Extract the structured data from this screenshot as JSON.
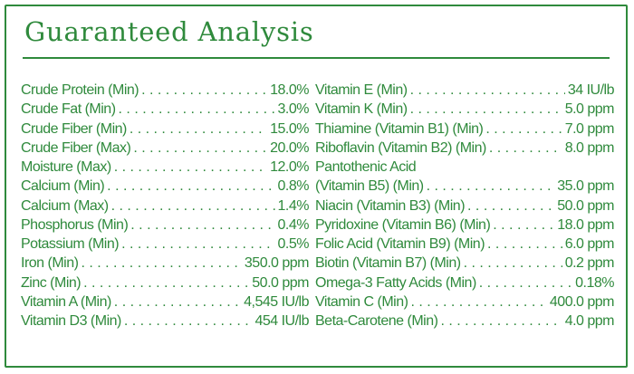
{
  "title": "Guaranteed Analysis",
  "left_column": [
    {
      "name": "Crude Protein (Min)",
      "value": "18.0%"
    },
    {
      "name": "Crude Fat (Min)",
      "value": "3.0%"
    },
    {
      "name": "Crude Fiber (Min)",
      "value": "15.0%"
    },
    {
      "name": "Crude Fiber (Max)",
      "value": "20.0%"
    },
    {
      "name": "Moisture (Max)",
      "value": "12.0%"
    },
    {
      "name": "Calcium (Min)",
      "value": "0.8%"
    },
    {
      "name": "Calcium (Max)",
      "value": "1.4%"
    },
    {
      "name": "Phosphorus (Min)",
      "value": "0.4%"
    },
    {
      "name": "Potassium (Min)",
      "value": "0.5%"
    },
    {
      "name": "Iron (Min)",
      "value": "350.0 ppm"
    },
    {
      "name": "Zinc (Min)",
      "value": "50.0 ppm"
    },
    {
      "name": "Vitamin A (Min)",
      "value": "4,545 IU/lb"
    },
    {
      "name": "Vitamin D3 (Min)",
      "value": "454 IU/lb"
    }
  ],
  "right_column": [
    {
      "name": "Vitamin E (Min)",
      "value": "34 IU/lb"
    },
    {
      "name": "Vitamin K (Min)",
      "value": "5.0 ppm"
    },
    {
      "name": "Thiamine (Vitamin B1) (Min)",
      "value": "7.0 ppm"
    },
    {
      "name": "Riboflavin (Vitamin B2) (Min)",
      "value": "8.0 ppm"
    },
    {
      "name": "Pantothenic Acid",
      "value": ""
    },
    {
      "name": "(Vitamin B5) (Min)",
      "value": "35.0 ppm"
    },
    {
      "name": "Niacin (Vitamin B3) (Min)",
      "value": "50.0 ppm"
    },
    {
      "name": "Pyridoxine (Vitamin B6) (Min)",
      "value": "18.0 ppm"
    },
    {
      "name": "Folic Acid (Vitamin B9) (Min)",
      "value": "6.0 ppm"
    },
    {
      "name": "Biotin (Vitamin B7) (Min)",
      "value": "0.2 ppm"
    },
    {
      "name": "Omega-3 Fatty Acids (Min)",
      "value": "0.18%"
    },
    {
      "name": "Vitamin C (Min)",
      "value": "400.0 ppm"
    },
    {
      "name": "Beta-Carotene (Min)",
      "value": "4.0 ppm"
    }
  ],
  "colors": {
    "accent": "#2f8a3c",
    "background": "#ffffff"
  }
}
